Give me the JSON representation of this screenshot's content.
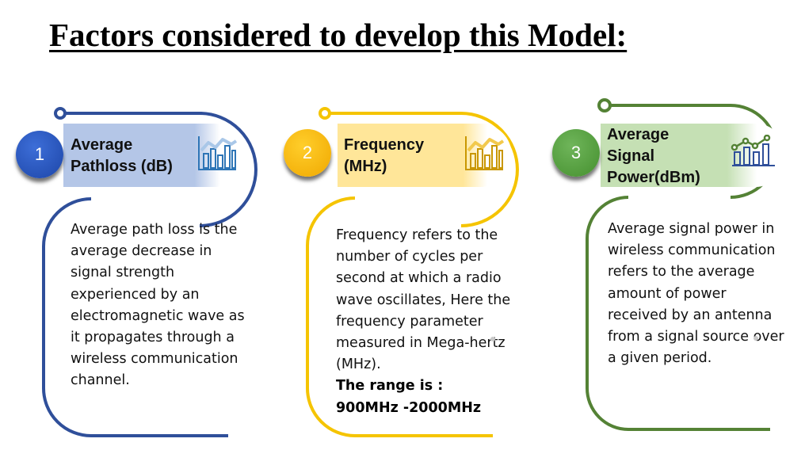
{
  "title": "Factors considered to develop this Model:",
  "colors": {
    "blue": "#2f4f9a",
    "yellow": "#f5c400",
    "green": "#548235"
  },
  "cards": [
    {
      "number": "1",
      "label": "Average\nPathloss (dB)",
      "icon": "bar-line-chart-icon",
      "text": "Average path loss is the average decrease in signal strength experienced by an electromagnetic wave as it propagates through a wireless communication channel."
    },
    {
      "number": "2",
      "label": "Frequency\n(MHz)",
      "icon": "bar-line-chart-icon",
      "text": "Frequency refers to the number of cycles per second at which a radio wave oscillates, Here the frequency parameter measured in Mega-hertz (MHz).",
      "range_label": "The range is :",
      "range_value": "900MHz -2000MHz"
    },
    {
      "number": "3",
      "label": "Average\nSignal\nPower(dBm)",
      "icon": "trend-bar-chart-icon",
      "text": "Average signal power in wireless communication refers to the average amount of power received by an antenna from a signal source over a given period."
    }
  ]
}
